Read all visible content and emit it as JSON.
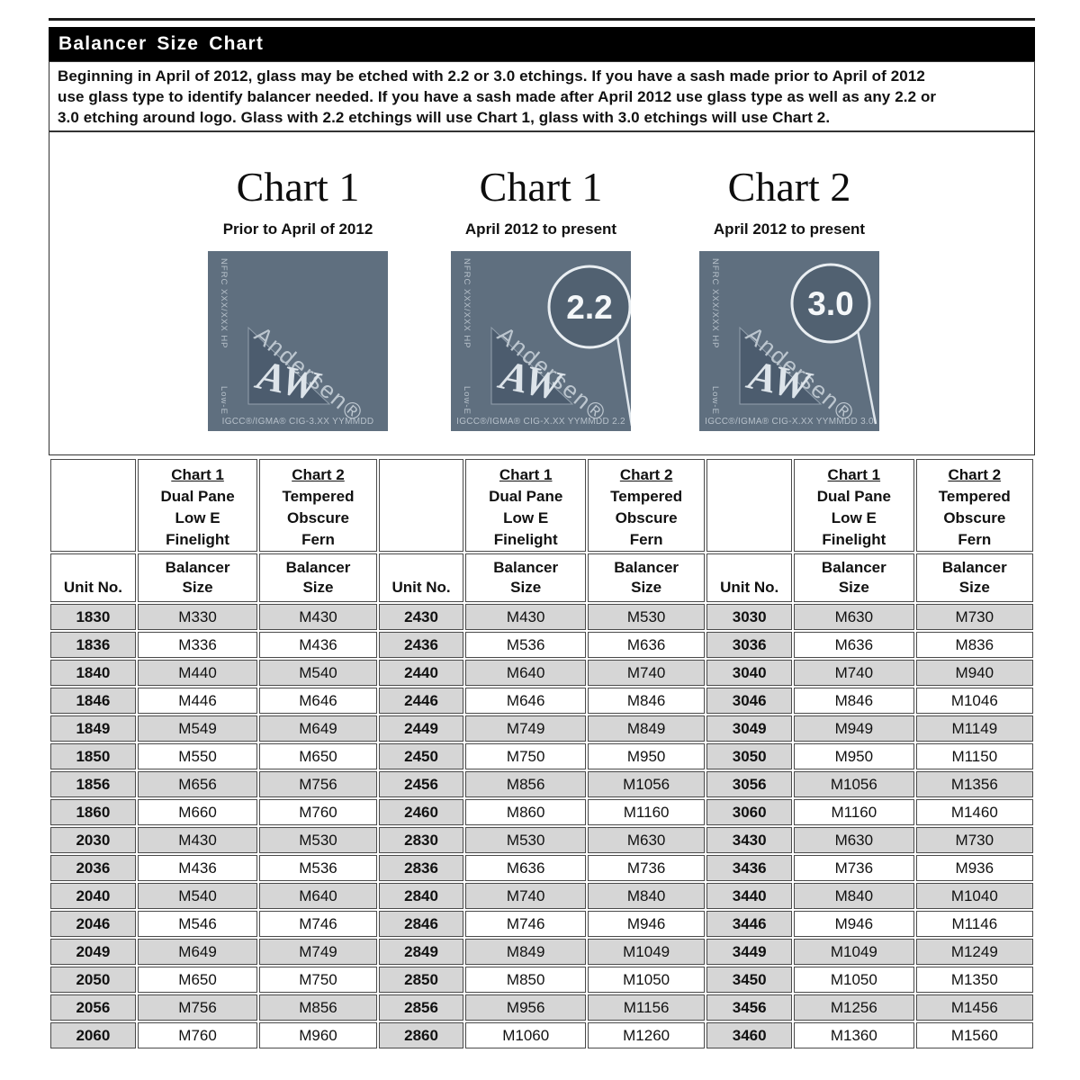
{
  "header": {
    "title": "Balancer Size Chart",
    "intro_lines": [
      "Beginning in April of 2012, glass may be etched with 2.2 or 3.0 etchings.  If you have a sash made prior to April of 2012",
      "use glass type to identify balancer needed.  If you have a sash made after April 2012 use glass type as well as any 2.2 or",
      "3.0 etching around logo. Glass with 2.2 etchings will use Chart 1, glass with 3.0 etchings will use Chart 2."
    ]
  },
  "figures": [
    {
      "title": "Chart 1",
      "subtitle": "Prior to April of 2012",
      "nfrc_label": "NFRC XXX/XXX HP",
      "lowe_label": "Low-E",
      "brand": "Andersen®",
      "monogram": "AW",
      "igcc_label": "IGCC®/IGMA® CIG-3.XX YYMMDD",
      "etch_label": ""
    },
    {
      "title": "Chart 1",
      "subtitle": "April 2012 to present",
      "nfrc_label": "NFRC XXX/XXX HP",
      "lowe_label": "Low-E",
      "brand": "Andersen®",
      "monogram": "AW",
      "igcc_label": "IGCC®/IGMA® CIG-X.XX YYMMDD 2.2",
      "etch_label": "2.2"
    },
    {
      "title": "Chart 2",
      "subtitle": "April 2012 to present",
      "nfrc_label": "NFRC XXX/XXX HP",
      "lowe_label": "Low-E",
      "brand": "Andersen®",
      "monogram": "AW",
      "igcc_label": "IGCC®/IGMA® CIG-X.XX YYMMDD 3.0",
      "etch_label": "3.0"
    }
  ],
  "table": {
    "unit_header": "Unit No.",
    "balancer_header": "Balancer\nSize",
    "chart1_header": {
      "title": "Chart 1",
      "lines": "Dual Pane\nLow E\nFinelight"
    },
    "chart2_header": {
      "title": "Chart 2",
      "lines": "Tempered\nObscure\nFern"
    },
    "groups": [
      {
        "rows": [
          [
            "1830",
            "M330",
            "M430"
          ],
          [
            "1836",
            "M336",
            "M436"
          ],
          [
            "1840",
            "M440",
            "M540"
          ],
          [
            "1846",
            "M446",
            "M646"
          ],
          [
            "1849",
            "M549",
            "M649"
          ],
          [
            "1850",
            "M550",
            "M650"
          ],
          [
            "1856",
            "M656",
            "M756"
          ],
          [
            "1860",
            "M660",
            "M760"
          ],
          [
            "2030",
            "M430",
            "M530"
          ],
          [
            "2036",
            "M436",
            "M536"
          ],
          [
            "2040",
            "M540",
            "M640"
          ],
          [
            "2046",
            "M546",
            "M746"
          ],
          [
            "2049",
            "M649",
            "M749"
          ],
          [
            "2050",
            "M650",
            "M750"
          ],
          [
            "2056",
            "M756",
            "M856"
          ],
          [
            "2060",
            "M760",
            "M960"
          ]
        ]
      },
      {
        "rows": [
          [
            "2430",
            "M430",
            "M530"
          ],
          [
            "2436",
            "M536",
            "M636"
          ],
          [
            "2440",
            "M640",
            "M740"
          ],
          [
            "2446",
            "M646",
            "M846"
          ],
          [
            "2449",
            "M749",
            "M849"
          ],
          [
            "2450",
            "M750",
            "M950"
          ],
          [
            "2456",
            "M856",
            "M1056"
          ],
          [
            "2460",
            "M860",
            "M1160"
          ],
          [
            "2830",
            "M530",
            "M630"
          ],
          [
            "2836",
            "M636",
            "M736"
          ],
          [
            "2840",
            "M740",
            "M840"
          ],
          [
            "2846",
            "M746",
            "M946"
          ],
          [
            "2849",
            "M849",
            "M1049"
          ],
          [
            "2850",
            "M850",
            "M1050"
          ],
          [
            "2856",
            "M956",
            "M1156"
          ],
          [
            "2860",
            "M1060",
            "M1260"
          ]
        ]
      },
      {
        "rows": [
          [
            "3030",
            "M630",
            "M730"
          ],
          [
            "3036",
            "M636",
            "M836"
          ],
          [
            "3040",
            "M740",
            "M940"
          ],
          [
            "3046",
            "M846",
            "M1046"
          ],
          [
            "3049",
            "M949",
            "M1149"
          ],
          [
            "3050",
            "M950",
            "M1150"
          ],
          [
            "3056",
            "M1056",
            "M1356"
          ],
          [
            "3060",
            "M1160",
            "M1460"
          ],
          [
            "3430",
            "M630",
            "M730"
          ],
          [
            "3436",
            "M736",
            "M936"
          ],
          [
            "3440",
            "M840",
            "M1040"
          ],
          [
            "3446",
            "M946",
            "M1146"
          ],
          [
            "3449",
            "M1049",
            "M1249"
          ],
          [
            "3450",
            "M1050",
            "M1350"
          ],
          [
            "3456",
            "M1256",
            "M1456"
          ],
          [
            "3460",
            "M1360",
            "M1560"
          ]
        ]
      }
    ]
  },
  "colors": {
    "title_bar_bg": "#000000",
    "title_bar_text": "#ffffff",
    "glass_panel": "#5f6f7f",
    "glass_text": "#b6c0ca",
    "row_stripe": "#d6d6d6",
    "table_border": "#4a4a4a"
  }
}
